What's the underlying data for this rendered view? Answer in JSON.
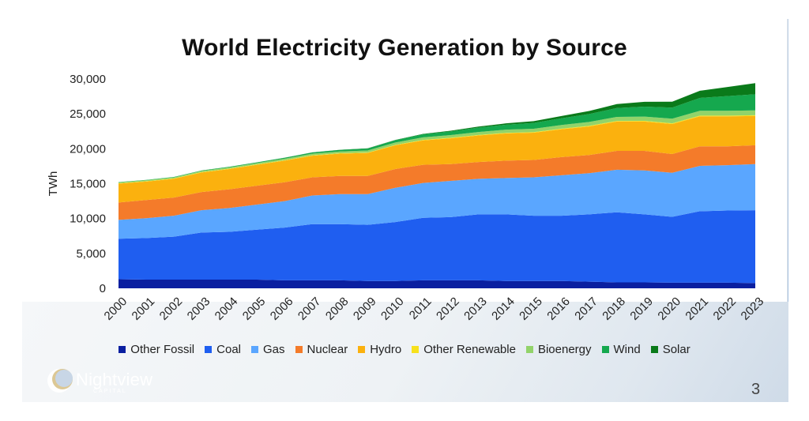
{
  "slide": {
    "page_number": "3"
  },
  "logo": {
    "name": "Nightview",
    "sub": "CAPITAL"
  },
  "chart_data": {
    "type": "area",
    "stacked": true,
    "title": "World Electricity Generation by Source",
    "ylabel": "TWh",
    "xlabel": "",
    "ylim": [
      0,
      30000
    ],
    "yticks": [
      "0",
      "5,000",
      "10,000",
      "15,000",
      "20,000",
      "25,000",
      "30,000"
    ],
    "ytick_values": [
      0,
      5000,
      10000,
      15000,
      20000,
      25000,
      30000
    ],
    "categories": [
      "2000",
      "2001",
      "2002",
      "2003",
      "2004",
      "2005",
      "2006",
      "2007",
      "2008",
      "2009",
      "2010",
      "2011",
      "2012",
      "2013",
      "2014",
      "2015",
      "2016",
      "2017",
      "2018",
      "2019",
      "2020",
      "2021",
      "2022",
      "2023"
    ],
    "legend_position": "bottom",
    "grid": false,
    "series": [
      {
        "name": "Other Fossil",
        "color": "#0a1fa0",
        "values": [
          1300,
          1250,
          1250,
          1250,
          1250,
          1250,
          1150,
          1150,
          1150,
          1050,
          1050,
          1150,
          1150,
          1150,
          1050,
          1050,
          1050,
          950,
          850,
          850,
          800,
          800,
          800,
          750
        ]
      },
      {
        "name": "Coal",
        "color": "#1f5ef0",
        "values": [
          5800,
          5950,
          6150,
          6750,
          6850,
          7150,
          7550,
          8050,
          8050,
          8050,
          8450,
          8950,
          9050,
          9450,
          9550,
          9350,
          9350,
          9650,
          10050,
          9750,
          9450,
          10250,
          10350,
          10450
        ]
      },
      {
        "name": "Gas",
        "color": "#5aa6ff",
        "values": [
          2700,
          2850,
          3000,
          3200,
          3400,
          3600,
          3800,
          4100,
          4300,
          4400,
          4900,
          5000,
          5200,
          5100,
          5200,
          5500,
          5800,
          5900,
          6100,
          6300,
          6300,
          6500,
          6500,
          6600
        ]
      },
      {
        "name": "Nuclear",
        "color": "#f47b2a",
        "values": [
          2500,
          2600,
          2600,
          2600,
          2700,
          2700,
          2700,
          2600,
          2600,
          2600,
          2700,
          2600,
          2400,
          2400,
          2500,
          2500,
          2600,
          2600,
          2700,
          2800,
          2700,
          2800,
          2700,
          2700
        ]
      },
      {
        "name": "Hydro",
        "color": "#fbb10e",
        "values": [
          2700,
          2650,
          2700,
          2800,
          2900,
          3000,
          3100,
          3100,
          3200,
          3300,
          3400,
          3500,
          3700,
          3800,
          3900,
          3900,
          4000,
          4100,
          4200,
          4200,
          4300,
          4300,
          4300,
          4200
        ]
      },
      {
        "name": "Other Renewable",
        "color": "#f7e11c",
        "values": [
          50,
          50,
          50,
          55,
          55,
          55,
          55,
          60,
          60,
          60,
          65,
          70,
          75,
          75,
          80,
          85,
          85,
          90,
          90,
          95,
          95,
          100,
          100,
          100
        ]
      },
      {
        "name": "Bioenergy",
        "color": "#92d36a",
        "values": [
          140,
          150,
          160,
          170,
          180,
          200,
          220,
          240,
          260,
          290,
          330,
          360,
          390,
          420,
          460,
          490,
          520,
          550,
          580,
          620,
          660,
          690,
          700,
          700
        ]
      },
      {
        "name": "Wind",
        "color": "#15a84e",
        "values": [
          30,
          40,
          50,
          60,
          80,
          100,
          130,
          170,
          220,
          280,
          340,
          440,
          520,
          640,
          710,
          830,
          960,
          1130,
          1270,
          1420,
          1590,
          1850,
          2100,
          2300
        ]
      },
      {
        "name": "Solar",
        "color": "#0a7a1a",
        "values": [
          1,
          2,
          3,
          5,
          6,
          8,
          10,
          12,
          20,
          30,
          40,
          60,
          100,
          140,
          190,
          250,
          330,
          440,
          570,
          700,
          850,
          1020,
          1300,
          1600
        ]
      }
    ]
  }
}
